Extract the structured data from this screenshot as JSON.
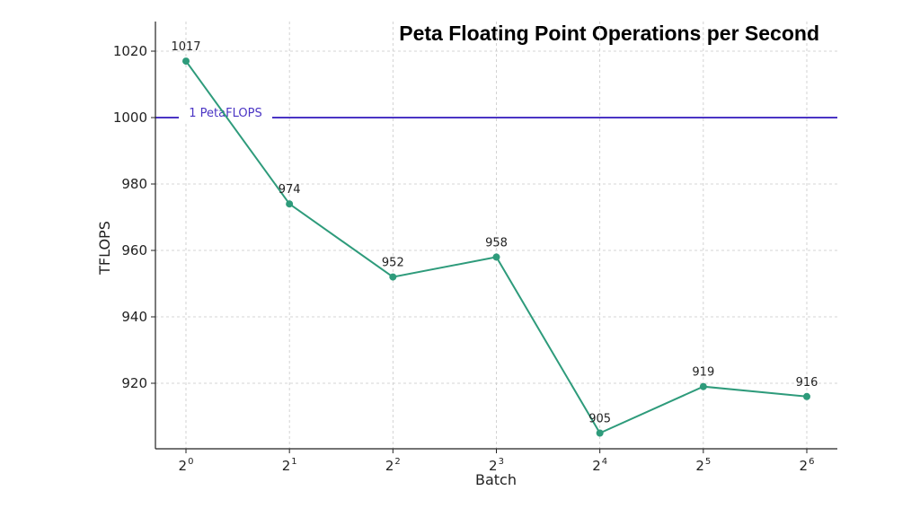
{
  "chart_data": {
    "type": "line",
    "title": "Peta Floating Point Operations per Second",
    "xlabel": "Batch",
    "ylabel": "TFLOPS",
    "x_tick_base": "2",
    "x_exponents": [
      "0",
      "1",
      "2",
      "3",
      "4",
      "5",
      "6"
    ],
    "x": [
      1,
      2,
      4,
      8,
      16,
      32,
      64
    ],
    "x_scale": "log2",
    "y_ticks": [
      920,
      940,
      960,
      980,
      1000,
      1020
    ],
    "ylim": [
      898,
      1022
    ],
    "grid": true,
    "series": [
      {
        "color": "#2e9b7b",
        "values": [
          1017,
          974,
          952,
          958,
          905,
          919,
          916
        ],
        "labels": [
          "1017",
          "974",
          "952",
          "958",
          "905",
          "919",
          "916"
        ]
      }
    ],
    "reference_line": {
      "value": 1000,
      "label": "1 PetaFLOPS",
      "color": "#4a34c4"
    }
  }
}
